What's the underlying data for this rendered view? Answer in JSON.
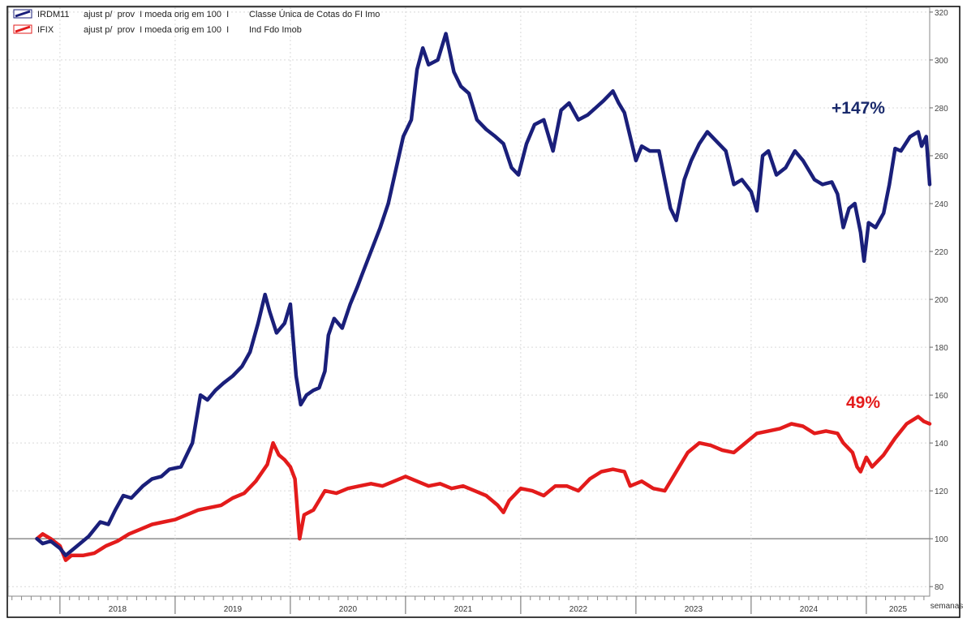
{
  "chart_data": {
    "type": "line",
    "legend": [
      {
        "ticker": "IRDM11",
        "adjust": "ajust p/  prov  I moeda orig em 100  I",
        "desc": "Classe Única de Cotas do FI Imo",
        "color": "#1a1f7a"
      },
      {
        "ticker": "IFIX",
        "adjust": "ajust p/  prov  I moeda orig em 100  I",
        "desc": "Ind Fdo Imob",
        "color": "#e31b1b"
      }
    ],
    "y_axis": {
      "range": [
        76,
        322
      ],
      "ticks": [
        80,
        100,
        120,
        140,
        160,
        180,
        200,
        220,
        240,
        260,
        280,
        300,
        320
      ]
    },
    "x_axis": {
      "range": [
        2017.55,
        2025.55
      ],
      "years": [
        "2018",
        "2019",
        "2020",
        "2021",
        "2022",
        "2023",
        "2024",
        "2025"
      ],
      "label": "semanas"
    },
    "reference_line": 100,
    "grid": true,
    "annotations": [
      {
        "text": "+147%",
        "series": "IRDM11",
        "color": "#1a2a6c"
      },
      {
        "text": "49%",
        "series": "IFIX",
        "color": "#e31b1b"
      }
    ],
    "series": [
      {
        "name": "IRDM11",
        "color": "#1a1f7a",
        "points": [
          [
            2017.8,
            100
          ],
          [
            2017.85,
            98
          ],
          [
            2017.92,
            99
          ],
          [
            2018.0,
            96
          ],
          [
            2018.05,
            93
          ],
          [
            2018.1,
            95
          ],
          [
            2018.15,
            97
          ],
          [
            2018.25,
            101
          ],
          [
            2018.35,
            107
          ],
          [
            2018.42,
            106
          ],
          [
            2018.48,
            112
          ],
          [
            2018.55,
            118
          ],
          [
            2018.62,
            117
          ],
          [
            2018.72,
            122
          ],
          [
            2018.8,
            125
          ],
          [
            2018.88,
            126
          ],
          [
            2018.95,
            129
          ],
          [
            2019.05,
            130
          ],
          [
            2019.15,
            140
          ],
          [
            2019.22,
            160
          ],
          [
            2019.28,
            158
          ],
          [
            2019.35,
            162
          ],
          [
            2019.42,
            165
          ],
          [
            2019.5,
            168
          ],
          [
            2019.58,
            172
          ],
          [
            2019.65,
            178
          ],
          [
            2019.72,
            190
          ],
          [
            2019.78,
            202
          ],
          [
            2019.82,
            195
          ],
          [
            2019.88,
            186
          ],
          [
            2019.95,
            190
          ],
          [
            2020.0,
            198
          ],
          [
            2020.05,
            168
          ],
          [
            2020.09,
            156
          ],
          [
            2020.14,
            160
          ],
          [
            2020.2,
            162
          ],
          [
            2020.25,
            163
          ],
          [
            2020.3,
            170
          ],
          [
            2020.33,
            185
          ],
          [
            2020.38,
            192
          ],
          [
            2020.45,
            188
          ],
          [
            2020.52,
            198
          ],
          [
            2020.58,
            205
          ],
          [
            2020.62,
            210
          ],
          [
            2020.7,
            220
          ],
          [
            2020.78,
            230
          ],
          [
            2020.85,
            240
          ],
          [
            2020.92,
            255
          ],
          [
            2020.98,
            268
          ],
          [
            2021.05,
            275
          ],
          [
            2021.1,
            296
          ],
          [
            2021.15,
            305
          ],
          [
            2021.2,
            298
          ],
          [
            2021.28,
            300
          ],
          [
            2021.35,
            311
          ],
          [
            2021.42,
            295
          ],
          [
            2021.48,
            289
          ],
          [
            2021.55,
            286
          ],
          [
            2021.62,
            275
          ],
          [
            2021.7,
            271
          ],
          [
            2021.78,
            268
          ],
          [
            2021.85,
            265
          ],
          [
            2021.92,
            255
          ],
          [
            2021.98,
            252
          ],
          [
            2022.05,
            265
          ],
          [
            2022.12,
            273
          ],
          [
            2022.2,
            275
          ],
          [
            2022.28,
            262
          ],
          [
            2022.35,
            279
          ],
          [
            2022.42,
            282
          ],
          [
            2022.5,
            275
          ],
          [
            2022.58,
            277
          ],
          [
            2022.65,
            280
          ],
          [
            2022.72,
            283
          ],
          [
            2022.8,
            287
          ],
          [
            2022.85,
            282
          ],
          [
            2022.9,
            278
          ],
          [
            2022.95,
            268
          ],
          [
            2023.0,
            258
          ],
          [
            2023.05,
            264
          ],
          [
            2023.12,
            262
          ],
          [
            2023.2,
            262
          ],
          [
            2023.25,
            250
          ],
          [
            2023.3,
            238
          ],
          [
            2023.35,
            233
          ],
          [
            2023.42,
            250
          ],
          [
            2023.48,
            258
          ],
          [
            2023.55,
            265
          ],
          [
            2023.62,
            270
          ],
          [
            2023.7,
            266
          ],
          [
            2023.78,
            262
          ],
          [
            2023.85,
            248
          ],
          [
            2023.92,
            250
          ],
          [
            2024.0,
            245
          ],
          [
            2024.05,
            237
          ],
          [
            2024.1,
            260
          ],
          [
            2024.15,
            262
          ],
          [
            2024.22,
            252
          ],
          [
            2024.3,
            255
          ],
          [
            2024.38,
            262
          ],
          [
            2024.45,
            258
          ],
          [
            2024.55,
            250
          ],
          [
            2024.62,
            248
          ],
          [
            2024.7,
            249
          ],
          [
            2024.75,
            244
          ],
          [
            2024.8,
            230
          ],
          [
            2024.85,
            238
          ],
          [
            2024.9,
            240
          ],
          [
            2024.95,
            228
          ],
          [
            2024.98,
            216
          ],
          [
            2025.02,
            232
          ],
          [
            2025.08,
            230
          ],
          [
            2025.15,
            236
          ],
          [
            2025.2,
            248
          ],
          [
            2025.25,
            263
          ],
          [
            2025.3,
            262
          ],
          [
            2025.38,
            268
          ],
          [
            2025.45,
            270
          ],
          [
            2025.48,
            264
          ],
          [
            2025.52,
            268
          ],
          [
            2025.55,
            248
          ]
        ]
      },
      {
        "name": "IFIX",
        "color": "#e31b1b",
        "points": [
          [
            2017.8,
            100
          ],
          [
            2017.85,
            102
          ],
          [
            2017.92,
            100
          ],
          [
            2018.0,
            97
          ],
          [
            2018.05,
            91
          ],
          [
            2018.1,
            93
          ],
          [
            2018.2,
            93
          ],
          [
            2018.3,
            94
          ],
          [
            2018.4,
            97
          ],
          [
            2018.5,
            99
          ],
          [
            2018.6,
            102
          ],
          [
            2018.7,
            104
          ],
          [
            2018.8,
            106
          ],
          [
            2018.9,
            107
          ],
          [
            2019.0,
            108
          ],
          [
            2019.1,
            110
          ],
          [
            2019.2,
            112
          ],
          [
            2019.3,
            113
          ],
          [
            2019.4,
            114
          ],
          [
            2019.5,
            117
          ],
          [
            2019.6,
            119
          ],
          [
            2019.7,
            124
          ],
          [
            2019.8,
            131
          ],
          [
            2019.85,
            140
          ],
          [
            2019.9,
            135
          ],
          [
            2019.95,
            133
          ],
          [
            2020.0,
            130
          ],
          [
            2020.04,
            125
          ],
          [
            2020.08,
            100
          ],
          [
            2020.12,
            110
          ],
          [
            2020.2,
            112
          ],
          [
            2020.25,
            116
          ],
          [
            2020.3,
            120
          ],
          [
            2020.4,
            119
          ],
          [
            2020.5,
            121
          ],
          [
            2020.6,
            122
          ],
          [
            2020.7,
            123
          ],
          [
            2020.8,
            122
          ],
          [
            2020.9,
            124
          ],
          [
            2021.0,
            126
          ],
          [
            2021.1,
            124
          ],
          [
            2021.2,
            122
          ],
          [
            2021.3,
            123
          ],
          [
            2021.4,
            121
          ],
          [
            2021.5,
            122
          ],
          [
            2021.6,
            120
          ],
          [
            2021.7,
            118
          ],
          [
            2021.8,
            114
          ],
          [
            2021.85,
            111
          ],
          [
            2021.9,
            116
          ],
          [
            2022.0,
            121
          ],
          [
            2022.1,
            120
          ],
          [
            2022.2,
            118
          ],
          [
            2022.3,
            122
          ],
          [
            2022.4,
            122
          ],
          [
            2022.5,
            120
          ],
          [
            2022.6,
            125
          ],
          [
            2022.7,
            128
          ],
          [
            2022.8,
            129
          ],
          [
            2022.9,
            128
          ],
          [
            2022.95,
            122
          ],
          [
            2023.05,
            124
          ],
          [
            2023.15,
            121
          ],
          [
            2023.25,
            120
          ],
          [
            2023.35,
            128
          ],
          [
            2023.45,
            136
          ],
          [
            2023.55,
            140
          ],
          [
            2023.65,
            139
          ],
          [
            2023.75,
            137
          ],
          [
            2023.85,
            136
          ],
          [
            2023.95,
            140
          ],
          [
            2024.05,
            144
          ],
          [
            2024.15,
            145
          ],
          [
            2024.25,
            146
          ],
          [
            2024.35,
            148
          ],
          [
            2024.45,
            147
          ],
          [
            2024.55,
            144
          ],
          [
            2024.65,
            145
          ],
          [
            2024.75,
            144
          ],
          [
            2024.8,
            140
          ],
          [
            2024.88,
            136
          ],
          [
            2024.92,
            130
          ],
          [
            2024.95,
            128
          ],
          [
            2025.0,
            134
          ],
          [
            2025.05,
            130
          ],
          [
            2025.15,
            135
          ],
          [
            2025.25,
            142
          ],
          [
            2025.35,
            148
          ],
          [
            2025.45,
            151
          ],
          [
            2025.5,
            149
          ],
          [
            2025.55,
            148
          ]
        ]
      }
    ]
  }
}
